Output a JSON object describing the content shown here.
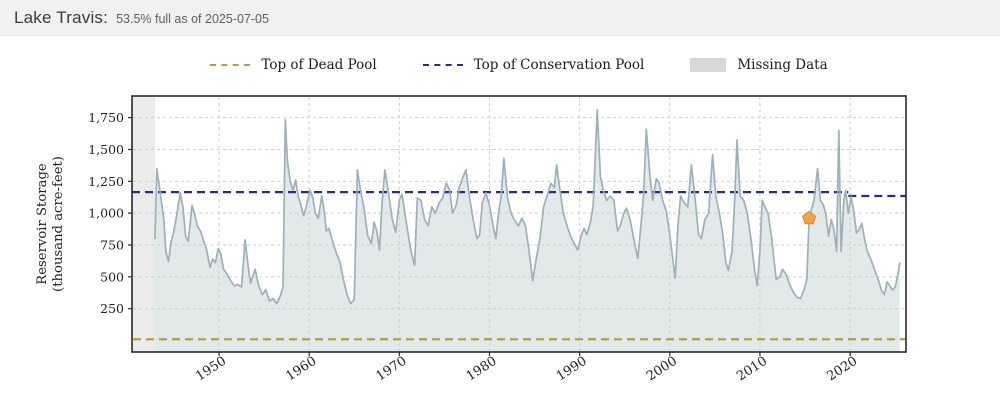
{
  "header": {
    "title": "Lake Travis:",
    "subtitle": "53.5% full as of 2025-07-05"
  },
  "legend": [
    {
      "label": "Top of Dead Pool",
      "type": "dashed-line",
      "color": "#b3a13e"
    },
    {
      "label": "Top of Conservation Pool",
      "type": "dashed-line",
      "color": "#28289a"
    },
    {
      "label": "Missing Data",
      "type": "box",
      "color": "#d8d8d8"
    }
  ],
  "colors": {
    "storage_line": "#9db1b8",
    "storage_fill": "#e2e9e9",
    "missing_fill": "#ebebeb",
    "grid": "#cfcfcf",
    "axis_border": "#2a2a2a",
    "tick_text": "#1f1f1f",
    "dead_pool": "#b3a13e",
    "conservation_pool": "#28289a",
    "marker_fill": "#f2a342",
    "marker_stroke": "#d98a28"
  },
  "chart_data": {
    "type": "area",
    "title": "",
    "xlabel": "",
    "ylabel_line1": "Reservoir Storage",
    "ylabel_line2": "(thousand acre-feet)",
    "units": "thousand acre-feet",
    "grid": "dashed",
    "legend_position": "top-center",
    "xlim": [
      1940.35,
      2026.2
    ],
    "ylim": [
      -90,
      1920
    ],
    "x_ticks": [
      1950,
      1960,
      1970,
      1980,
      1990,
      2000,
      2010,
      2020
    ],
    "y_ticks": [
      {
        "value": 250,
        "label": "250"
      },
      {
        "value": 500,
        "label": "500"
      },
      {
        "value": 750,
        "label": "750"
      },
      {
        "value": 1000,
        "label": "1,000"
      },
      {
        "value": 1250,
        "label": "1,250"
      },
      {
        "value": 1500,
        "label": "1,500"
      },
      {
        "value": 1750,
        "label": "1,750"
      }
    ],
    "missing_data_region": {
      "start": 1940.35,
      "end": 1942.9
    },
    "reference_lines": {
      "top_of_dead_pool": {
        "value": 10
      },
      "top_of_conservation_pool": {
        "segments": [
          {
            "from": 1940.35,
            "to": 2019.8,
            "value": 1165
          },
          {
            "from": 2019.8,
            "to": 2026.2,
            "value": 1135
          }
        ]
      }
    },
    "marker": {
      "x": 2015.45,
      "y": 960,
      "shape": "pentagon"
    },
    "series_name": "Reservoir storage",
    "points": [
      [
        1942.9,
        800
      ],
      [
        1943.1,
        1350
      ],
      [
        1943.5,
        1150
      ],
      [
        1943.9,
        940
      ],
      [
        1944.1,
        700
      ],
      [
        1944.4,
        620
      ],
      [
        1944.7,
        780
      ],
      [
        1945.0,
        860
      ],
      [
        1945.3,
        980
      ],
      [
        1945.7,
        1160
      ],
      [
        1946.0,
        1050
      ],
      [
        1946.3,
        820
      ],
      [
        1946.6,
        780
      ],
      [
        1947.0,
        1060
      ],
      [
        1947.3,
        990
      ],
      [
        1947.6,
        900
      ],
      [
        1948.0,
        850
      ],
      [
        1948.3,
        780
      ],
      [
        1948.6,
        720
      ],
      [
        1949.0,
        575
      ],
      [
        1949.3,
        640
      ],
      [
        1949.6,
        610
      ],
      [
        1949.9,
        720
      ],
      [
        1950.2,
        680
      ],
      [
        1950.5,
        560
      ],
      [
        1950.9,
        520
      ],
      [
        1951.3,
        470
      ],
      [
        1951.7,
        430
      ],
      [
        1952.1,
        440
      ],
      [
        1952.5,
        420
      ],
      [
        1952.9,
        790
      ],
      [
        1953.2,
        600
      ],
      [
        1953.5,
        450
      ],
      [
        1953.8,
        520
      ],
      [
        1954.0,
        560
      ],
      [
        1954.4,
        430
      ],
      [
        1954.8,
        360
      ],
      [
        1955.2,
        400
      ],
      [
        1955.6,
        310
      ],
      [
        1956.0,
        330
      ],
      [
        1956.4,
        290
      ],
      [
        1956.8,
        350
      ],
      [
        1957.1,
        420
      ],
      [
        1957.35,
        1735
      ],
      [
        1957.6,
        1400
      ],
      [
        1957.9,
        1250
      ],
      [
        1958.2,
        1180
      ],
      [
        1958.5,
        1260
      ],
      [
        1958.8,
        1130
      ],
      [
        1959.1,
        1060
      ],
      [
        1959.4,
        980
      ],
      [
        1959.7,
        1060
      ],
      [
        1960.1,
        1180
      ],
      [
        1960.4,
        1120
      ],
      [
        1960.7,
        1000
      ],
      [
        1961.0,
        960
      ],
      [
        1961.4,
        1135
      ],
      [
        1961.7,
        1000
      ],
      [
        1961.9,
        860
      ],
      [
        1962.2,
        880
      ],
      [
        1962.6,
        780
      ],
      [
        1963.0,
        690
      ],
      [
        1963.4,
        620
      ],
      [
        1963.8,
        480
      ],
      [
        1964.2,
        360
      ],
      [
        1964.6,
        290
      ],
      [
        1965.0,
        320
      ],
      [
        1965.35,
        1340
      ],
      [
        1965.7,
        1180
      ],
      [
        1966.1,
        1030
      ],
      [
        1966.5,
        820
      ],
      [
        1966.9,
        760
      ],
      [
        1967.2,
        930
      ],
      [
        1967.5,
        860
      ],
      [
        1967.8,
        710
      ],
      [
        1968.1,
        1100
      ],
      [
        1968.4,
        1340
      ],
      [
        1968.8,
        1160
      ],
      [
        1969.2,
        960
      ],
      [
        1969.6,
        850
      ],
      [
        1970.0,
        1100
      ],
      [
        1970.3,
        1150
      ],
      [
        1970.6,
        1010
      ],
      [
        1970.9,
        870
      ],
      [
        1971.3,
        700
      ],
      [
        1971.7,
        590
      ],
      [
        1972.0,
        1120
      ],
      [
        1972.4,
        1100
      ],
      [
        1972.8,
        950
      ],
      [
        1973.2,
        900
      ],
      [
        1973.6,
        1050
      ],
      [
        1974.0,
        1000
      ],
      [
        1974.4,
        1080
      ],
      [
        1974.8,
        1120
      ],
      [
        1975.2,
        1235
      ],
      [
        1975.6,
        1180
      ],
      [
        1975.9,
        1000
      ],
      [
        1976.3,
        1060
      ],
      [
        1976.7,
        1215
      ],
      [
        1977.1,
        1290
      ],
      [
        1977.4,
        1340
      ],
      [
        1977.8,
        1120
      ],
      [
        1978.2,
        950
      ],
      [
        1978.6,
        800
      ],
      [
        1978.9,
        830
      ],
      [
        1979.2,
        1080
      ],
      [
        1979.6,
        1160
      ],
      [
        1980.0,
        1060
      ],
      [
        1980.4,
        900
      ],
      [
        1980.7,
        800
      ],
      [
        1981.0,
        1000
      ],
      [
        1981.3,
        1135
      ],
      [
        1981.6,
        1430
      ],
      [
        1982.0,
        1120
      ],
      [
        1982.4,
        1000
      ],
      [
        1982.8,
        940
      ],
      [
        1983.2,
        900
      ],
      [
        1983.6,
        960
      ],
      [
        1984.0,
        900
      ],
      [
        1984.4,
        700
      ],
      [
        1984.8,
        470
      ],
      [
        1985.2,
        650
      ],
      [
        1985.6,
        800
      ],
      [
        1986.0,
        1050
      ],
      [
        1986.5,
        1160
      ],
      [
        1986.8,
        1235
      ],
      [
        1987.2,
        1200
      ],
      [
        1987.45,
        1380
      ],
      [
        1987.8,
        1190
      ],
      [
        1988.2,
        1000
      ],
      [
        1988.6,
        900
      ],
      [
        1989.0,
        820
      ],
      [
        1989.4,
        760
      ],
      [
        1989.8,
        712
      ],
      [
        1990.2,
        830
      ],
      [
        1990.5,
        880
      ],
      [
        1990.8,
        830
      ],
      [
        1991.2,
        930
      ],
      [
        1991.5,
        1060
      ],
      [
        1991.95,
        1810
      ],
      [
        1992.3,
        1290
      ],
      [
        1992.6,
        1180
      ],
      [
        1993.0,
        1100
      ],
      [
        1993.4,
        1135
      ],
      [
        1993.8,
        1100
      ],
      [
        1994.2,
        860
      ],
      [
        1994.5,
        900
      ],
      [
        1994.9,
        1000
      ],
      [
        1995.2,
        1040
      ],
      [
        1995.6,
        950
      ],
      [
        1996.0,
        800
      ],
      [
        1996.45,
        645
      ],
      [
        1996.8,
        900
      ],
      [
        1997.1,
        1150
      ],
      [
        1997.4,
        1660
      ],
      [
        1997.8,
        1290
      ],
      [
        1998.1,
        1100
      ],
      [
        1998.5,
        1270
      ],
      [
        1998.8,
        1240
      ],
      [
        1999.2,
        1100
      ],
      [
        1999.6,
        1020
      ],
      [
        2000.0,
        830
      ],
      [
        2000.6,
        490
      ],
      [
        2000.9,
        900
      ],
      [
        2001.2,
        1135
      ],
      [
        2001.6,
        1080
      ],
      [
        2002.0,
        1050
      ],
      [
        2002.4,
        1380
      ],
      [
        2002.8,
        1120
      ],
      [
        2003.2,
        830
      ],
      [
        2003.5,
        800
      ],
      [
        2003.9,
        950
      ],
      [
        2004.3,
        1000
      ],
      [
        2004.75,
        1460
      ],
      [
        2005.1,
        1135
      ],
      [
        2005.5,
        1000
      ],
      [
        2005.9,
        820
      ],
      [
        2006.2,
        620
      ],
      [
        2006.5,
        550
      ],
      [
        2006.9,
        700
      ],
      [
        2007.2,
        1100
      ],
      [
        2007.45,
        1575
      ],
      [
        2007.8,
        1135
      ],
      [
        2008.2,
        1100
      ],
      [
        2008.6,
        1000
      ],
      [
        2009.0,
        800
      ],
      [
        2009.4,
        560
      ],
      [
        2009.7,
        430
      ],
      [
        2010.0,
        700
      ],
      [
        2010.25,
        1100
      ],
      [
        2010.6,
        1040
      ],
      [
        2010.9,
        1000
      ],
      [
        2011.3,
        800
      ],
      [
        2011.8,
        480
      ],
      [
        2012.2,
        500
      ],
      [
        2012.5,
        560
      ],
      [
        2012.9,
        520
      ],
      [
        2013.3,
        440
      ],
      [
        2013.7,
        380
      ],
      [
        2014.1,
        340
      ],
      [
        2014.5,
        330
      ],
      [
        2014.9,
        400
      ],
      [
        2015.2,
        480
      ],
      [
        2015.45,
        960
      ],
      [
        2015.8,
        1050
      ],
      [
        2016.0,
        1100
      ],
      [
        2016.4,
        1350
      ],
      [
        2016.7,
        1100
      ],
      [
        2017.0,
        1070
      ],
      [
        2017.3,
        1000
      ],
      [
        2017.6,
        820
      ],
      [
        2017.9,
        950
      ],
      [
        2018.2,
        870
      ],
      [
        2018.5,
        700
      ],
      [
        2018.75,
        1650
      ],
      [
        2019.0,
        700
      ],
      [
        2019.3,
        1100
      ],
      [
        2019.5,
        1180
      ],
      [
        2019.8,
        1000
      ],
      [
        2020.1,
        1130
      ],
      [
        2020.4,
        1020
      ],
      [
        2020.7,
        845
      ],
      [
        2021.0,
        870
      ],
      [
        2021.3,
        920
      ],
      [
        2021.6,
        800
      ],
      [
        2021.9,
        700
      ],
      [
        2022.3,
        640
      ],
      [
        2022.7,
        560
      ],
      [
        2023.1,
        480
      ],
      [
        2023.5,
        390
      ],
      [
        2023.8,
        360
      ],
      [
        2024.1,
        460
      ],
      [
        2024.4,
        430
      ],
      [
        2024.7,
        395
      ],
      [
        2025.0,
        420
      ],
      [
        2025.3,
        520
      ],
      [
        2025.5,
        607
      ]
    ]
  }
}
